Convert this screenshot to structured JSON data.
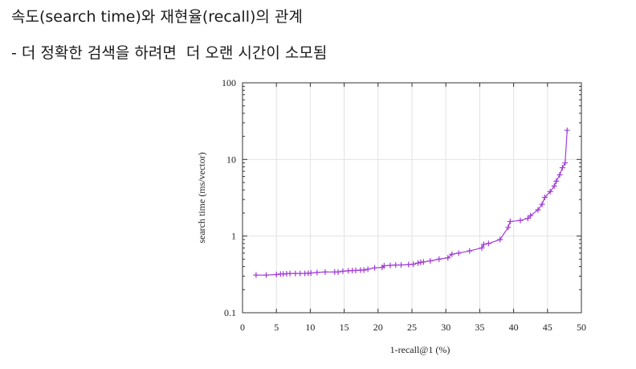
{
  "slide": {
    "title": "속도(search time)와 재현율(recall)의 관계",
    "subtitle": "- 더 정확한 검색을 하려면  더 오랜 시간이 소모됨"
  },
  "chart_data": {
    "type": "line",
    "xlabel": "1-recall@1 (%)",
    "ylabel": "search time (ms/vector)",
    "xlim": [
      0,
      50
    ],
    "ylim": [
      0.1,
      100
    ],
    "y_scale": "log",
    "x_ticks": [
      0,
      5,
      10,
      15,
      20,
      25,
      30,
      35,
      40,
      45,
      50
    ],
    "x_tick_labels": [
      "0",
      "5",
      "10",
      "15",
      "20",
      "25",
      "30",
      "35",
      "40",
      "45",
      "50"
    ],
    "y_ticks": [
      0.1,
      1,
      10,
      100
    ],
    "y_tick_labels": [
      "0.1",
      "1",
      "10",
      "100"
    ],
    "grid": true,
    "marker": "+",
    "color": "#a23cd6",
    "series": [
      {
        "x": [
          2.0,
          3.5,
          5.0,
          5.6,
          6.0,
          6.5,
          7.0,
          7.8,
          8.5,
          9.2,
          9.7,
          10.1,
          11.0,
          12.2,
          13.6,
          14.1,
          14.8,
          15.6,
          16.2,
          16.7,
          17.4,
          17.9,
          18.5,
          19.5,
          20.6,
          20.9,
          21.8,
          22.6,
          23.4,
          24.5,
          25.2,
          25.9,
          26.3,
          26.7,
          27.7,
          29.0,
          30.3,
          30.9,
          31.9,
          33.5,
          35.3,
          35.6,
          36.3,
          38.0,
          39.2,
          39.5,
          41.0,
          42.1,
          42.5,
          43.6,
          44.2,
          44.6,
          45.4,
          46.0,
          46.3,
          46.8,
          47.2,
          47.6,
          47.9
        ],
        "y": [
          0.31,
          0.31,
          0.315,
          0.32,
          0.32,
          0.323,
          0.325,
          0.325,
          0.326,
          0.326,
          0.328,
          0.33,
          0.335,
          0.34,
          0.34,
          0.34,
          0.348,
          0.352,
          0.355,
          0.356,
          0.36,
          0.36,
          0.37,
          0.385,
          0.39,
          0.41,
          0.415,
          0.42,
          0.42,
          0.425,
          0.43,
          0.445,
          0.455,
          0.46,
          0.475,
          0.5,
          0.52,
          0.58,
          0.6,
          0.64,
          0.7,
          0.78,
          0.8,
          0.9,
          1.3,
          1.55,
          1.6,
          1.7,
          1.85,
          2.2,
          2.6,
          3.2,
          3.8,
          4.5,
          5.2,
          6.3,
          7.8,
          9.0,
          24.0
        ]
      }
    ]
  }
}
